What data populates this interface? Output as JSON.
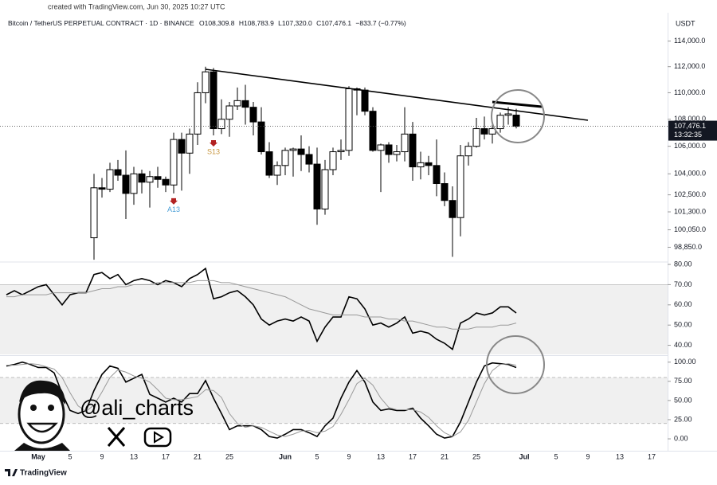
{
  "header": "created with TradingView.com, Jun 30, 2025 10:27 UTC",
  "footer": "TradingView",
  "watermark": "@ali_charts",
  "chart_data": [
    {
      "type": "candlestick",
      "title": "Bitcoin / TetherUS PERPETUAL CONTRACT · 1D · BINANCE",
      "legend_values": [
        "O108,309.8",
        "H108,783.9",
        "L107,320.0",
        "C107,476.1",
        "−833.7 (−0.77%)"
      ],
      "currency": "USDT",
      "last_price_label": "107,476.1",
      "countdown": "13:32:35",
      "annotations": [
        {
          "text": "S13",
          "index": 26,
          "color": "#c8963e"
        },
        {
          "text": "A13",
          "index": 21,
          "color": "#4a9fd8"
        }
      ],
      "log_scale": true,
      "grid": false,
      "up_color": "#ffffff",
      "down_color": "#000000",
      "categories": [
        null,
        null,
        null,
        null,
        "May",
        null,
        null,
        null,
        "5",
        null,
        null,
        null,
        "9",
        null,
        null,
        null,
        "13",
        null,
        null,
        null,
        "17",
        null,
        null,
        null,
        "21",
        null,
        null,
        null,
        "25",
        null,
        null,
        null,
        null,
        null,
        null,
        "Jun",
        null,
        null,
        null,
        "5",
        null,
        null,
        null,
        "9",
        null,
        null,
        null,
        "13",
        null,
        null,
        null,
        "17",
        null,
        null,
        null,
        "21",
        null,
        null,
        null,
        "25",
        null,
        null,
        null,
        null,
        null,
        "Jul",
        null,
        null,
        null,
        "5",
        null,
        null,
        null,
        "9",
        null,
        null,
        null,
        "13",
        null,
        null,
        null,
        "17"
      ],
      "open": [
        null,
        null,
        null,
        null,
        null,
        null,
        null,
        null,
        null,
        null,
        null,
        99500,
        103000,
        102900,
        104300,
        103900,
        102600,
        104000,
        103400,
        103800,
        103600,
        103200,
        106500,
        105500,
        106900,
        110000,
        111600,
        107300,
        108000,
        109000,
        109400,
        108900,
        107800,
        105600,
        103900,
        104600,
        105700,
        105800,
        105400,
        104700,
        101500,
        104300,
        105600,
        105700,
        110300,
        110200,
        108600,
        105700,
        106100,
        105400,
        105600,
        106900,
        104500,
        104800,
        104600,
        103300,
        102100,
        100900,
        105300,
        106000,
        107300,
        106900,
        107300,
        108300,
        108309.8,
        null,
        null,
        null,
        null,
        null,
        null,
        null,
        null,
        null,
        null,
        null,
        null,
        null,
        null,
        null,
        null,
        null
      ],
      "high": [
        null,
        null,
        null,
        null,
        null,
        null,
        null,
        null,
        null,
        null,
        null,
        104000,
        103700,
        104800,
        105000,
        105700,
        104500,
        104300,
        104200,
        104500,
        103800,
        107000,
        107000,
        107300,
        110800,
        112000,
        111900,
        109500,
        109300,
        110400,
        110600,
        109300,
        108900,
        106300,
        104900,
        105900,
        105900,
        106800,
        106000,
        105900,
        105000,
        105900,
        106500,
        110500,
        110400,
        110400,
        108900,
        106200,
        106300,
        106100,
        108900,
        107800,
        105600,
        105300,
        106500,
        104100,
        103100,
        106100,
        106300,
        108100,
        108200,
        107800,
        108500,
        108900,
        108783.9,
        null,
        null,
        null,
        null,
        null,
        null,
        null,
        null,
        null,
        null,
        null,
        null,
        null,
        null,
        null,
        null,
        null
      ],
      "low": [
        null,
        null,
        null,
        null,
        null,
        null,
        null,
        null,
        null,
        null,
        null,
        98000,
        102300,
        102700,
        103500,
        100800,
        101800,
        102600,
        101600,
        103000,
        102700,
        102600,
        102800,
        104000,
        106100,
        109200,
        106800,
        106900,
        106700,
        108700,
        107600,
        106800,
        105400,
        103700,
        103200,
        103900,
        103800,
        104200,
        104100,
        100400,
        101100,
        103900,
        105000,
        105300,
        108300,
        108300,
        105600,
        102700,
        104800,
        104900,
        104900,
        103500,
        103600,
        103900,
        102400,
        101700,
        98200,
        99600,
        104600,
        105900,
        106500,
        106200,
        107000,
        107600,
        107320.0,
        null,
        null,
        null,
        null,
        null,
        null,
        null,
        null,
        null,
        null,
        null,
        null,
        null,
        null,
        null,
        null,
        null
      ],
      "close": [
        null,
        null,
        null,
        null,
        null,
        null,
        null,
        null,
        null,
        null,
        null,
        103000,
        102900,
        104300,
        103900,
        102600,
        104000,
        103400,
        103800,
        103600,
        103200,
        106500,
        105500,
        106900,
        110000,
        111600,
        107300,
        108000,
        109000,
        109400,
        108900,
        107800,
        105600,
        103900,
        104600,
        105700,
        105800,
        105400,
        104700,
        101500,
        104300,
        105600,
        105700,
        110300,
        110200,
        108600,
        105700,
        106100,
        105400,
        105600,
        106900,
        104500,
        104800,
        104600,
        103300,
        102100,
        100900,
        105300,
        106000,
        107300,
        106900,
        107300,
        108300,
        108400,
        107476.1,
        null,
        null,
        null,
        null,
        null,
        null,
        null,
        null,
        null,
        null,
        null,
        null,
        null,
        null,
        null,
        null,
        null
      ],
      "ylim": [
        97900,
        116000
      ],
      "yticks": [
        {
          "value": 114000,
          "label": "114,000.0"
        },
        {
          "value": 112000,
          "label": "112,000.0"
        },
        {
          "value": 110000,
          "label": "110,000.0"
        },
        {
          "value": 108000,
          "label": "108,000.0"
        },
        {
          "value": 106000,
          "label": "106,000.0"
        },
        {
          "value": 104000,
          "label": "104,000.0"
        },
        {
          "value": 102500,
          "label": "102,500.0"
        },
        {
          "value": 101300,
          "label": "101,300.0"
        },
        {
          "value": 100050,
          "label": "100,050.0"
        },
        {
          "value": 98850,
          "label": "98,850.0"
        }
      ]
    },
    {
      "type": "line",
      "band": [
        30,
        70
      ],
      "series": [
        {
          "color": "#000000",
          "values": [
            65,
            67,
            65,
            67,
            69,
            70,
            65,
            60,
            65,
            66,
            66,
            75,
            76,
            73,
            75,
            70,
            72,
            73,
            72,
            70,
            72,
            71,
            69,
            73,
            75,
            78,
            63,
            64,
            66,
            67,
            64,
            60,
            53,
            50,
            52,
            53,
            52,
            54,
            52,
            42,
            49,
            54,
            54,
            64,
            63,
            58,
            50,
            51,
            49,
            51,
            54,
            46,
            47,
            46,
            43,
            41,
            38,
            51,
            53,
            56,
            55,
            56,
            59,
            59,
            56,
            null,
            null,
            null,
            null,
            null,
            null,
            null,
            null,
            null,
            null,
            null,
            null,
            null,
            null,
            null,
            null,
            null
          ]
        },
        {
          "color": "#999999",
          "values": [
            64,
            64,
            65,
            65,
            65,
            65,
            66,
            66,
            66,
            66,
            66,
            67,
            68,
            68,
            69,
            69,
            70,
            70,
            70,
            71,
            71,
            71,
            71,
            71,
            72,
            72,
            72,
            71,
            71,
            70,
            69,
            68,
            67,
            66,
            65,
            64,
            62,
            60,
            58,
            57,
            56,
            55,
            55,
            55,
            55,
            54,
            54,
            54,
            53,
            53,
            52,
            52,
            51,
            50,
            49,
            49,
            48,
            48,
            48,
            49,
            49,
            49,
            50,
            50,
            51,
            null,
            null,
            null,
            null,
            null,
            null,
            null,
            null,
            null,
            null,
            null,
            null,
            null,
            null,
            null,
            null,
            null
          ]
        }
      ],
      "ylim": [
        35.5,
        80.8
      ],
      "yticks": [
        {
          "value": 80,
          "label": "80.00"
        },
        {
          "value": 70,
          "label": "70.00"
        },
        {
          "value": 60,
          "label": "60.00"
        },
        {
          "value": 50,
          "label": "50.00"
        },
        {
          "value": 40,
          "label": "40.00"
        }
      ]
    },
    {
      "type": "line",
      "band": [
        20,
        80
      ],
      "series": [
        {
          "color": "#000000",
          "values": [
            95,
            97,
            100,
            97,
            93,
            93,
            86,
            59,
            37,
            33,
            37,
            63,
            84,
            95,
            92,
            74,
            79,
            84,
            58,
            53,
            48,
            53,
            48,
            59,
            59,
            76,
            53,
            33,
            12,
            17,
            17,
            17,
            12,
            3,
            1,
            6,
            12,
            12,
            8,
            3,
            17,
            27,
            53,
            74,
            89,
            74,
            48,
            37,
            39,
            37,
            37,
            40,
            27,
            17,
            6,
            1,
            3,
            22,
            48,
            74,
            95,
            99,
            98,
            97,
            93,
            null,
            null,
            null,
            null,
            null,
            null,
            null,
            null,
            null,
            null,
            null,
            null,
            null,
            null,
            null,
            null,
            null
          ]
        },
        {
          "color": "#999999",
          "values": [
            96,
            96,
            97,
            98,
            97,
            94,
            91,
            80,
            60,
            43,
            36,
            44,
            61,
            80,
            90,
            87,
            82,
            79,
            74,
            64,
            53,
            51,
            51,
            53,
            55,
            64,
            63,
            54,
            33,
            20,
            15,
            17,
            15,
            10,
            5,
            3,
            6,
            10,
            11,
            8,
            10,
            16,
            32,
            51,
            72,
            79,
            70,
            53,
            41,
            38,
            38,
            38,
            35,
            28,
            17,
            8,
            3,
            9,
            24,
            48,
            72,
            89,
            97,
            98,
            96,
            null,
            null,
            null,
            null,
            null,
            null,
            null,
            null,
            null,
            null,
            null,
            null,
            null,
            null,
            null,
            null,
            null
          ]
        }
      ],
      "ylim": [
        -14.5,
        107
      ],
      "yticks": [
        {
          "value": 100,
          "label": "100.00"
        },
        {
          "value": 75,
          "label": "75.00"
        },
        {
          "value": 50,
          "label": "50.00"
        },
        {
          "value": 25,
          "label": "25.00"
        },
        {
          "value": 0,
          "label": "0.00"
        }
      ]
    }
  ]
}
